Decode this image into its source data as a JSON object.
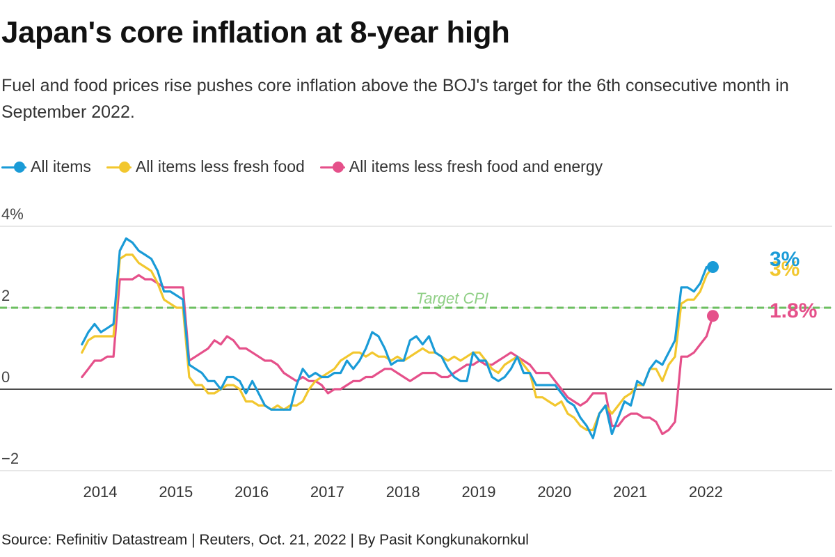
{
  "title": "Japan's core inflation at 8-year high",
  "subtitle": "Fuel and food prices rise pushes core inflation above the BOJ's target for the 6th consecutive month in September 2022.",
  "source": "Source: Refinitiv Datastream | Reuters, Oct. 21, 2022 | By Pasit Kongkunakornkul",
  "chart_data": {
    "type": "line",
    "x_axis": {
      "type": "date",
      "range": [
        "2013-07",
        "2023-12"
      ],
      "ticks": [
        "2014",
        "2015",
        "2016",
        "2017",
        "2018",
        "2019",
        "2020",
        "2021",
        "2022"
      ]
    },
    "y_axis": {
      "range": [
        -2,
        4
      ],
      "ticks": [
        4,
        2,
        0,
        -2
      ],
      "tick_labels": [
        "4%",
        "2",
        "0",
        "−2"
      ]
    },
    "grid": "horizontal",
    "legend_position": "top-left",
    "target_line": {
      "value": 2,
      "label": "Target CPI",
      "color": "#6cbf61"
    },
    "start_month": "2013-10",
    "series": [
      {
        "name": "All items",
        "color": "#1a9bd7",
        "end_label": "3%",
        "values": [
          1.1,
          1.4,
          1.6,
          1.4,
          1.5,
          1.6,
          3.4,
          3.7,
          3.6,
          3.4,
          3.3,
          3.2,
          2.9,
          2.4,
          2.4,
          2.3,
          2.2,
          0.6,
          0.5,
          0.4,
          0.2,
          0.2,
          0.0,
          0.3,
          0.3,
          0.2,
          -0.1,
          0.2,
          -0.1,
          -0.4,
          -0.5,
          -0.5,
          -0.5,
          -0.5,
          0.1,
          0.5,
          0.3,
          0.4,
          0.3,
          0.3,
          0.4,
          0.4,
          0.7,
          0.5,
          0.7,
          1.0,
          1.4,
          1.3,
          1.0,
          0.6,
          0.7,
          0.7,
          1.2,
          1.3,
          1.1,
          1.3,
          0.9,
          0.8,
          0.5,
          0.3,
          0.2,
          0.2,
          0.9,
          0.7,
          0.7,
          0.3,
          0.2,
          0.3,
          0.5,
          0.8,
          0.4,
          0.4,
          0.1,
          0.1,
          0.1,
          0.1,
          -0.1,
          -0.3,
          -0.4,
          -0.7,
          -0.9,
          -1.2,
          -0.6,
          -0.4,
          -1.1,
          -0.7,
          -0.3,
          -0.4,
          0.2,
          0.1,
          0.5,
          0.7,
          0.6,
          0.9,
          1.2,
          2.5,
          2.5,
          2.4,
          2.6,
          3.0,
          3.0
        ]
      },
      {
        "name": "All items less fresh food",
        "color": "#f2c72e",
        "end_label": "3%",
        "values": [
          0.9,
          1.2,
          1.3,
          1.3,
          1.3,
          1.3,
          3.2,
          3.3,
          3.3,
          3.1,
          3.0,
          2.9,
          2.6,
          2.2,
          2.1,
          2.0,
          2.0,
          0.3,
          0.1,
          0.1,
          -0.1,
          -0.1,
          0.0,
          0.1,
          0.1,
          0.0,
          -0.3,
          -0.3,
          -0.4,
          -0.4,
          -0.5,
          -0.4,
          -0.5,
          -0.4,
          -0.4,
          -0.3,
          0.0,
          0.2,
          0.3,
          0.4,
          0.5,
          0.7,
          0.8,
          0.9,
          0.9,
          0.8,
          0.9,
          0.8,
          0.8,
          0.7,
          0.8,
          0.7,
          0.8,
          0.9,
          1.0,
          0.9,
          0.9,
          0.8,
          0.7,
          0.8,
          0.7,
          0.8,
          0.9,
          0.9,
          0.7,
          0.5,
          0.4,
          0.6,
          0.7,
          0.8,
          0.6,
          0.4,
          -0.2,
          -0.2,
          -0.3,
          -0.4,
          -0.3,
          -0.6,
          -0.7,
          -0.9,
          -1.0,
          -1.0,
          -0.6,
          -0.4,
          -0.6,
          -0.4,
          -0.2,
          -0.1,
          0.1,
          0.1,
          0.5,
          0.5,
          0.2,
          0.6,
          0.8,
          2.1,
          2.2,
          2.2,
          2.4,
          2.8,
          3.0
        ]
      },
      {
        "name": "All items less fresh food and energy",
        "color": "#e5508a",
        "end_label": "1.8%",
        "values": [
          0.3,
          0.5,
          0.7,
          0.7,
          0.8,
          0.8,
          2.7,
          2.7,
          2.7,
          2.8,
          2.7,
          2.7,
          2.6,
          2.5,
          2.5,
          2.5,
          2.5,
          0.7,
          0.8,
          0.9,
          1.0,
          1.2,
          1.1,
          1.3,
          1.2,
          1.0,
          1.0,
          0.9,
          0.8,
          0.7,
          0.7,
          0.6,
          0.4,
          0.3,
          0.2,
          0.3,
          0.2,
          0.2,
          0.1,
          -0.1,
          0.0,
          0.0,
          0.1,
          0.2,
          0.2,
          0.3,
          0.3,
          0.4,
          0.5,
          0.5,
          0.4,
          0.3,
          0.2,
          0.3,
          0.4,
          0.4,
          0.4,
          0.3,
          0.3,
          0.4,
          0.5,
          0.6,
          0.6,
          0.7,
          0.6,
          0.6,
          0.7,
          0.8,
          0.9,
          0.8,
          0.7,
          0.6,
          0.4,
          0.4,
          0.4,
          0.2,
          0.0,
          -0.2,
          -0.3,
          -0.4,
          -0.3,
          -0.1,
          -0.1,
          -0.1,
          -0.9,
          -0.9,
          -0.7,
          -0.6,
          -0.6,
          -0.7,
          -0.7,
          -0.8,
          -1.1,
          -1.0,
          -0.8,
          0.8,
          0.8,
          0.9,
          1.1,
          1.3,
          1.8
        ]
      }
    ]
  }
}
